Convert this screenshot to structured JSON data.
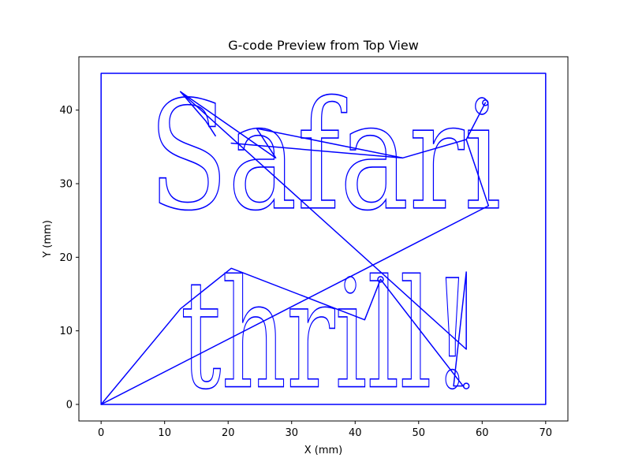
{
  "chart_data": {
    "type": "line",
    "title": "G-code Preview from Top View",
    "xlabel": "X (mm)",
    "ylabel": "Y (mm)",
    "xlim": [
      -3.5,
      73.5
    ],
    "ylim": [
      -2.25,
      47.25
    ],
    "xticks": [
      0,
      10,
      20,
      30,
      40,
      50,
      60,
      70
    ],
    "yticks": [
      0,
      10,
      20,
      30,
      40
    ],
    "grid": false,
    "color": "#0000ff",
    "engraved_text": {
      "line1": "Safari",
      "line2": "thrill!"
    },
    "series": [
      {
        "role": "border",
        "x": [
          0,
          70,
          70,
          0,
          0
        ],
        "y": [
          0,
          0,
          45,
          45,
          0
        ]
      },
      {
        "role": "travel",
        "x": [
          0,
          12.5,
          20.5,
          41.5,
          44,
          57,
          55.5,
          57.5,
          57.5,
          12.5,
          12.5,
          27.5,
          24.5,
          47.5,
          20.5,
          47.5,
          57.5,
          60.5,
          57.5,
          61,
          0
        ],
        "y": [
          0,
          13,
          18.5,
          11.5,
          17,
          2.5,
          2.5,
          18,
          7.5,
          42.5,
          42.5,
          33.5,
          37.5,
          33.5,
          35.5,
          33.5,
          36,
          41,
          36,
          27,
          0
        ]
      },
      {
        "role": "serif-t",
        "x": [
          12.5,
          16.5,
          18
        ],
        "y": [
          42.5,
          38.5,
          36.5
        ]
      }
    ]
  }
}
